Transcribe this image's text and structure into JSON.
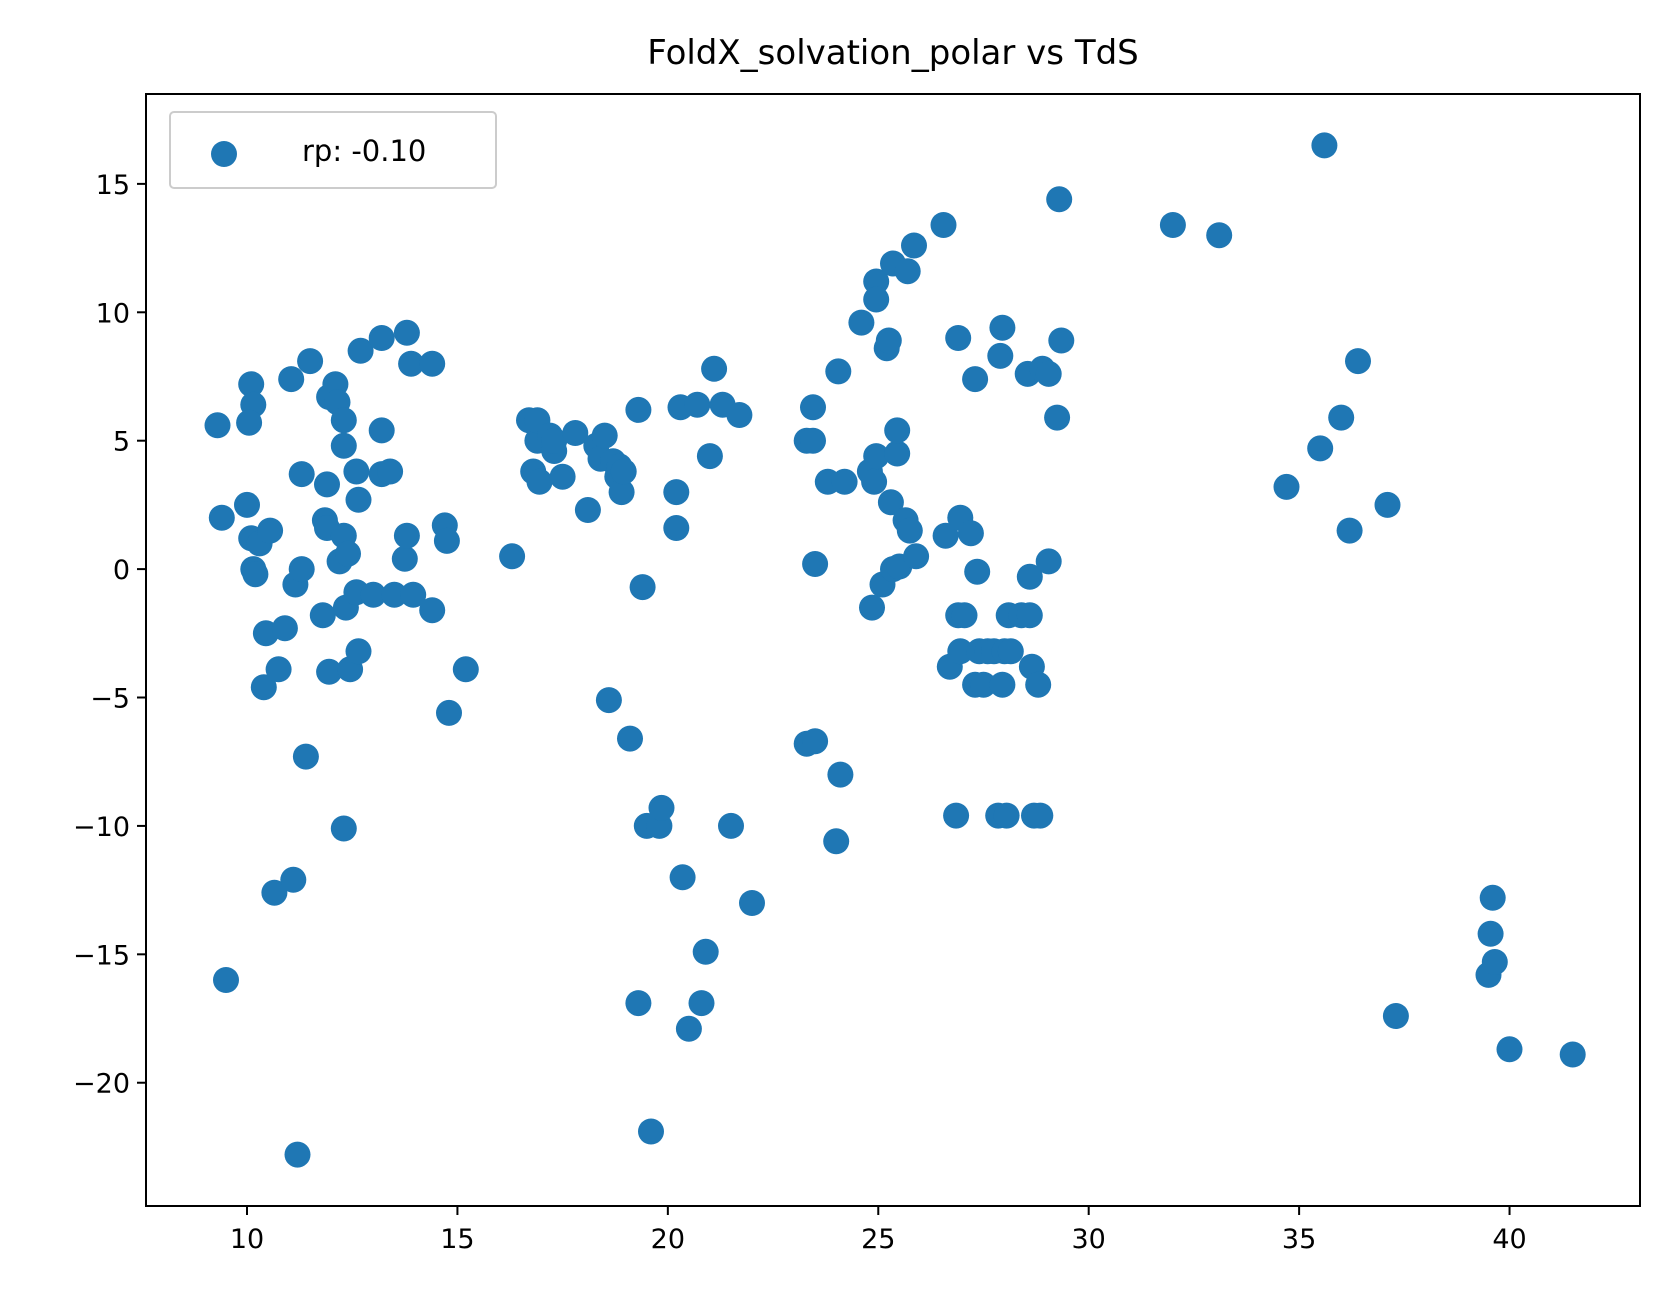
{
  "chart_data": {
    "type": "scatter",
    "title": "FoldX_solvation_polar vs TdS",
    "xlabel": "",
    "ylabel": "",
    "xlim": [
      7.6,
      43.1
    ],
    "ylim": [
      -24.8,
      18.5
    ],
    "xticks": [
      10,
      15,
      20,
      25,
      30,
      35,
      40
    ],
    "xtick_labels": [
      "10",
      "15",
      "20",
      "25",
      "30",
      "35",
      "40"
    ],
    "yticks": [
      15,
      10,
      5,
      0,
      -5,
      -10,
      -15,
      -20
    ],
    "ytick_labels": [
      "15",
      "10",
      "5",
      "0",
      "−5",
      "−10",
      "−15",
      "−20"
    ],
    "legend": {
      "position": "top-left",
      "entries": [
        "rp: -0.10"
      ]
    },
    "grid": false,
    "series": [
      {
        "name": "rp: -0.10",
        "color": "#1f77b4",
        "points": [
          [
            9.3,
            5.6
          ],
          [
            9.4,
            2.0
          ],
          [
            9.5,
            -16.0
          ],
          [
            10.0,
            2.5
          ],
          [
            10.1,
            7.2
          ],
          [
            10.15,
            6.4
          ],
          [
            10.05,
            5.7
          ],
          [
            10.1,
            1.2
          ],
          [
            10.15,
            0.0
          ],
          [
            10.2,
            -0.2
          ],
          [
            10.3,
            1.0
          ],
          [
            10.4,
            -4.6
          ],
          [
            10.45,
            -2.5
          ],
          [
            10.55,
            1.5
          ],
          [
            10.65,
            -12.6
          ],
          [
            10.75,
            -3.9
          ],
          [
            10.9,
            -2.3
          ],
          [
            11.05,
            7.4
          ],
          [
            11.1,
            -12.1
          ],
          [
            11.15,
            -0.6
          ],
          [
            11.2,
            -22.8
          ],
          [
            11.3,
            0.0
          ],
          [
            11.3,
            3.7
          ],
          [
            11.4,
            -7.3
          ],
          [
            11.5,
            8.1
          ],
          [
            11.8,
            -1.8
          ],
          [
            11.85,
            1.9
          ],
          [
            11.9,
            1.6
          ],
          [
            11.9,
            3.3
          ],
          [
            11.95,
            6.7
          ],
          [
            11.95,
            -4.0
          ],
          [
            12.1,
            7.2
          ],
          [
            12.15,
            6.5
          ],
          [
            12.2,
            0.3
          ],
          [
            12.3,
            1.3
          ],
          [
            12.3,
            5.8
          ],
          [
            12.3,
            4.8
          ],
          [
            12.35,
            -1.5
          ],
          [
            12.3,
            -10.1
          ],
          [
            12.4,
            0.6
          ],
          [
            12.45,
            -3.9
          ],
          [
            12.6,
            -0.9
          ],
          [
            12.65,
            2.7
          ],
          [
            12.6,
            3.8
          ],
          [
            12.65,
            -3.2
          ],
          [
            12.7,
            8.5
          ],
          [
            13.0,
            -1.0
          ],
          [
            13.2,
            9.0
          ],
          [
            13.2,
            3.7
          ],
          [
            13.2,
            5.4
          ],
          [
            13.4,
            3.8
          ],
          [
            13.5,
            -1.0
          ],
          [
            13.75,
            0.4
          ],
          [
            13.8,
            1.3
          ],
          [
            13.8,
            9.2
          ],
          [
            13.9,
            8.0
          ],
          [
            13.95,
            -1.0
          ],
          [
            14.4,
            8.0
          ],
          [
            14.4,
            -1.6
          ],
          [
            14.7,
            1.7
          ],
          [
            14.75,
            1.1
          ],
          [
            14.8,
            -5.6
          ],
          [
            15.2,
            -3.9
          ],
          [
            16.3,
            0.5
          ],
          [
            16.7,
            5.8
          ],
          [
            16.8,
            3.8
          ],
          [
            16.9,
            5.0
          ],
          [
            16.9,
            5.8
          ],
          [
            16.95,
            3.4
          ],
          [
            17.2,
            5.2
          ],
          [
            17.3,
            4.6
          ],
          [
            17.3,
            5.0
          ],
          [
            17.5,
            3.6
          ],
          [
            17.8,
            5.3
          ],
          [
            18.1,
            2.3
          ],
          [
            18.3,
            4.8
          ],
          [
            18.4,
            4.3
          ],
          [
            18.5,
            5.2
          ],
          [
            18.6,
            -5.1
          ],
          [
            18.7,
            4.2
          ],
          [
            18.8,
            3.6
          ],
          [
            18.85,
            4.0
          ],
          [
            18.9,
            3.0
          ],
          [
            18.95,
            3.8
          ],
          [
            19.1,
            -6.6
          ],
          [
            19.3,
            6.2
          ],
          [
            19.3,
            -16.9
          ],
          [
            19.4,
            -0.7
          ],
          [
            19.5,
            -10.0
          ],
          [
            19.6,
            -21.9
          ],
          [
            19.8,
            -10.0
          ],
          [
            19.85,
            -9.3
          ],
          [
            20.2,
            3.0
          ],
          [
            20.2,
            1.6
          ],
          [
            20.3,
            6.3
          ],
          [
            20.35,
            -12.0
          ],
          [
            20.5,
            -17.9
          ],
          [
            20.7,
            6.4
          ],
          [
            20.8,
            -16.9
          ],
          [
            20.9,
            -14.9
          ],
          [
            21.0,
            4.4
          ],
          [
            21.1,
            7.8
          ],
          [
            21.3,
            6.4
          ],
          [
            21.5,
            -10.0
          ],
          [
            21.7,
            6.0
          ],
          [
            22.0,
            -13.0
          ],
          [
            23.3,
            5.0
          ],
          [
            23.3,
            -6.8
          ],
          [
            23.45,
            6.3
          ],
          [
            23.45,
            5.0
          ],
          [
            23.5,
            -6.7
          ],
          [
            23.5,
            0.2
          ],
          [
            23.8,
            3.4
          ],
          [
            24.0,
            -10.6
          ],
          [
            24.05,
            7.7
          ],
          [
            24.1,
            -8.0
          ],
          [
            24.2,
            3.4
          ],
          [
            24.6,
            9.6
          ],
          [
            24.8,
            3.8
          ],
          [
            24.85,
            -1.5
          ],
          [
            24.9,
            3.4
          ],
          [
            24.95,
            4.4
          ],
          [
            24.95,
            11.2
          ],
          [
            24.95,
            10.5
          ],
          [
            25.1,
            -0.6
          ],
          [
            25.2,
            8.6
          ],
          [
            25.25,
            8.9
          ],
          [
            25.3,
            2.6
          ],
          [
            25.35,
            0.0
          ],
          [
            25.35,
            11.9
          ],
          [
            25.45,
            4.5
          ],
          [
            25.45,
            5.4
          ],
          [
            25.5,
            0.1
          ],
          [
            25.65,
            1.9
          ],
          [
            25.7,
            11.6
          ],
          [
            25.75,
            1.5
          ],
          [
            25.85,
            12.6
          ],
          [
            25.9,
            0.5
          ],
          [
            26.55,
            13.4
          ],
          [
            26.6,
            1.3
          ],
          [
            26.7,
            -3.8
          ],
          [
            26.85,
            -9.6
          ],
          [
            26.9,
            -1.8
          ],
          [
            26.9,
            9.0
          ],
          [
            26.95,
            2.0
          ],
          [
            26.95,
            -3.2
          ],
          [
            27.05,
            -1.8
          ],
          [
            27.2,
            1.4
          ],
          [
            27.3,
            7.4
          ],
          [
            27.3,
            -4.5
          ],
          [
            27.35,
            -0.1
          ],
          [
            27.4,
            -3.2
          ],
          [
            27.5,
            -4.5
          ],
          [
            27.6,
            -3.2
          ],
          [
            27.75,
            -3.2
          ],
          [
            27.85,
            -9.6
          ],
          [
            27.9,
            8.3
          ],
          [
            27.95,
            9.4
          ],
          [
            27.95,
            -4.5
          ],
          [
            28.0,
            -3.2
          ],
          [
            28.05,
            -9.6
          ],
          [
            28.1,
            -1.8
          ],
          [
            28.15,
            -3.2
          ],
          [
            28.4,
            -1.8
          ],
          [
            28.55,
            7.6
          ],
          [
            28.6,
            -0.3
          ],
          [
            28.6,
            -1.8
          ],
          [
            28.65,
            -3.8
          ],
          [
            28.7,
            -9.6
          ],
          [
            28.8,
            -4.5
          ],
          [
            28.85,
            -9.6
          ],
          [
            28.9,
            7.8
          ],
          [
            29.05,
            7.6
          ],
          [
            29.05,
            0.3
          ],
          [
            29.25,
            5.9
          ],
          [
            29.3,
            14.4
          ],
          [
            29.35,
            8.9
          ],
          [
            32.0,
            13.4
          ],
          [
            33.1,
            13.0
          ],
          [
            34.7,
            3.2
          ],
          [
            35.5,
            4.7
          ],
          [
            35.6,
            16.5
          ],
          [
            36.0,
            5.9
          ],
          [
            36.2,
            1.5
          ],
          [
            36.4,
            8.1
          ],
          [
            37.1,
            2.5
          ],
          [
            37.3,
            -17.4
          ],
          [
            39.5,
            -15.8
          ],
          [
            39.55,
            -14.2
          ],
          [
            39.6,
            -12.8
          ],
          [
            39.65,
            -15.3
          ],
          [
            40.0,
            -18.7
          ],
          [
            41.5,
            -18.9
          ]
        ]
      }
    ]
  }
}
